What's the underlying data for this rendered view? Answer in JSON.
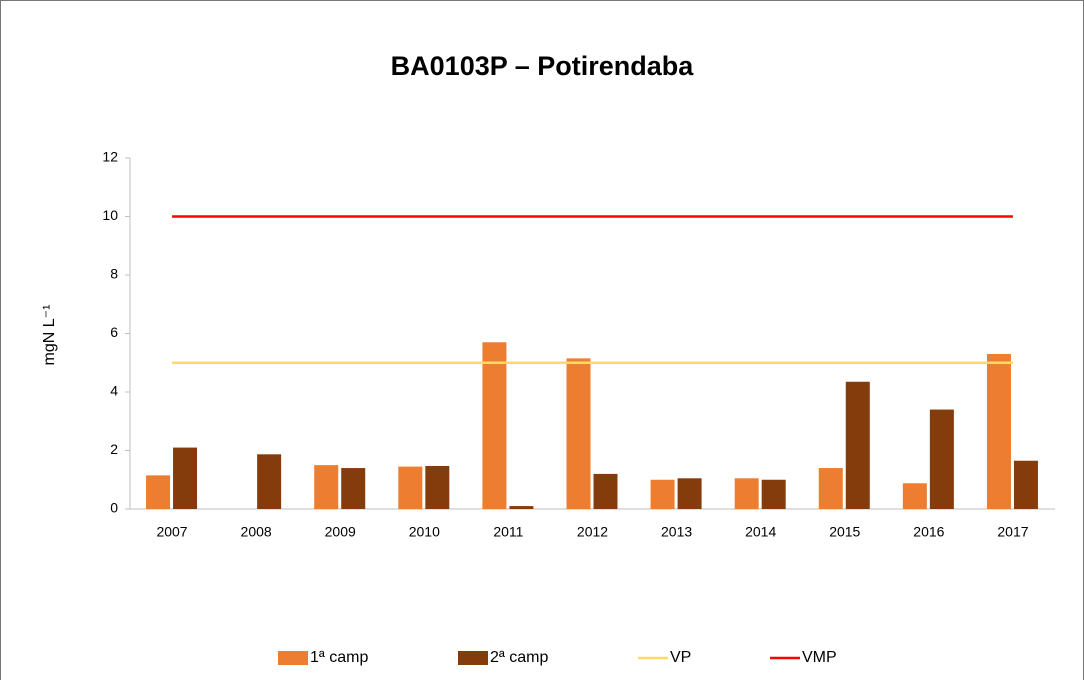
{
  "chart_data": {
    "type": "bar",
    "title": "BA0103P – Potirendaba",
    "y_label": "mgN L⁻¹",
    "categories": [
      "2007",
      "2008",
      "2009",
      "2010",
      "2011",
      "2012",
      "2013",
      "2014",
      "2015",
      "2016",
      "2017"
    ],
    "series": [
      {
        "name": "1ª camp",
        "type": "bar",
        "color": "#ed7d31",
        "values": [
          1.15,
          null,
          1.5,
          1.45,
          5.7,
          5.15,
          1.0,
          1.05,
          1.4,
          0.88,
          5.3
        ]
      },
      {
        "name": "2ª camp",
        "type": "bar",
        "color": "#843c0c",
        "values": [
          2.1,
          1.87,
          1.4,
          1.47,
          0.1,
          1.2,
          1.05,
          1.0,
          4.35,
          3.4,
          1.65
        ]
      },
      {
        "name": "VP",
        "type": "line",
        "color": "#ffd966",
        "values": [
          5,
          5,
          5,
          5,
          5,
          5,
          5,
          5,
          5,
          5,
          5
        ]
      },
      {
        "name": "VMP",
        "type": "line",
        "color": "#ff0000",
        "values": [
          10,
          10,
          10,
          10,
          10,
          10,
          10,
          10,
          10,
          10,
          10
        ]
      }
    ],
    "ylim": [
      0,
      12
    ],
    "yticks": [
      0,
      2,
      4,
      6,
      8,
      10,
      12
    ],
    "legend": "bottom"
  }
}
